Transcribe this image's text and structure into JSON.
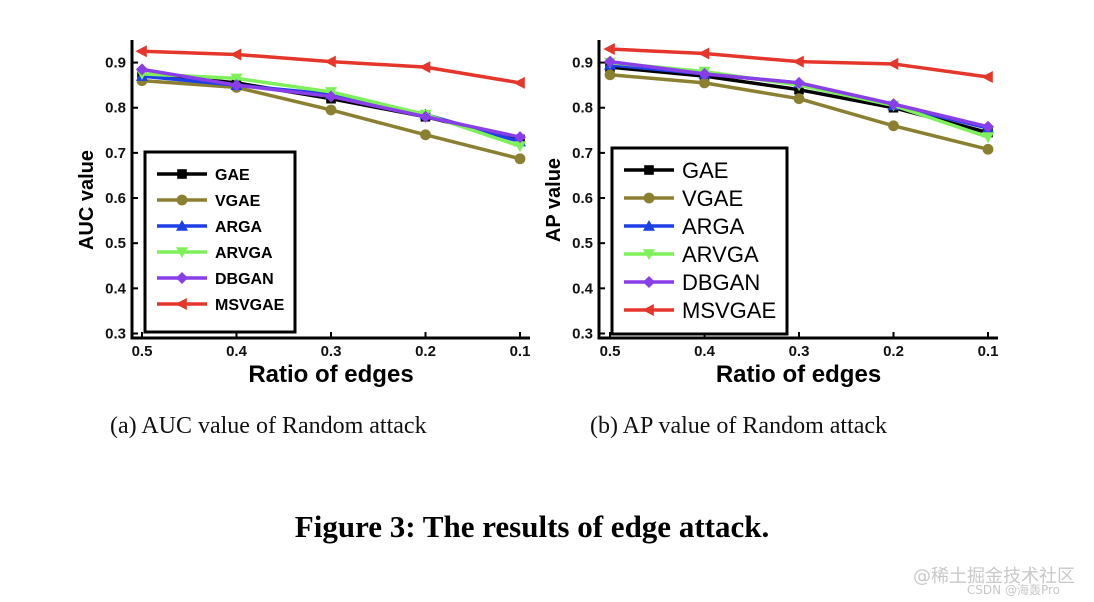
{
  "figure_caption": "Figure 3: The results of edge attack.",
  "watermark": {
    "line1": "@稀土掘金技术社区",
    "line2": "CSDN @海轰Pro"
  },
  "colors": {
    "GAE": "#000000",
    "VGAE": "#8b8032",
    "ARGA": "#1f3fe6",
    "ARVGA": "#7ef05a",
    "DBGAN": "#8a3ee8",
    "MSVGAE": "#e5362b"
  },
  "chart_data": [
    {
      "type": "line",
      "caption": "(a)  AUC value of Random attack",
      "xlabel": "Ratio of edges",
      "ylabel": "AUC value",
      "categories": [
        "0.5",
        "0.4",
        "0.3",
        "0.2",
        "0.1"
      ],
      "yticks": [
        "0.3",
        "0.4",
        "0.5",
        "0.6",
        "0.7",
        "0.8",
        "0.9"
      ],
      "ylim": [
        0.29,
        0.95
      ],
      "legend_position": "lower-left",
      "series": [
        {
          "name": "GAE",
          "marker": "square",
          "values": [
            0.875,
            0.855,
            0.82,
            0.78,
            0.73
          ]
        },
        {
          "name": "VGAE",
          "marker": "circle",
          "values": [
            0.86,
            0.845,
            0.795,
            0.74,
            0.687
          ]
        },
        {
          "name": "ARGA",
          "marker": "triangle-up",
          "values": [
            0.87,
            0.85,
            0.83,
            0.785,
            0.725
          ]
        },
        {
          "name": "ARVGA",
          "marker": "triangle-down",
          "values": [
            0.875,
            0.865,
            0.835,
            0.785,
            0.715
          ]
        },
        {
          "name": "DBGAN",
          "marker": "diamond",
          "values": [
            0.885,
            0.85,
            0.825,
            0.78,
            0.735
          ]
        },
        {
          "name": "MSVGAE",
          "marker": "triangle-left",
          "values": [
            0.925,
            0.918,
            0.902,
            0.89,
            0.855
          ]
        }
      ]
    },
    {
      "type": "line",
      "caption": "(b)  AP value of Random attack",
      "xlabel": "Ratio of edges",
      "ylabel": "AP value",
      "categories": [
        "0.5",
        "0.4",
        "0.3",
        "0.2",
        "0.1"
      ],
      "yticks": [
        "0.3",
        "0.4",
        "0.5",
        "0.6",
        "0.7",
        "0.8",
        "0.9"
      ],
      "ylim": [
        0.29,
        0.95
      ],
      "legend_position": "lower-left",
      "series": [
        {
          "name": "GAE",
          "marker": "square",
          "values": [
            0.89,
            0.87,
            0.84,
            0.8,
            0.745
          ]
        },
        {
          "name": "VGAE",
          "marker": "circle",
          "values": [
            0.873,
            0.855,
            0.82,
            0.76,
            0.708
          ]
        },
        {
          "name": "ARGA",
          "marker": "triangle-up",
          "values": [
            0.895,
            0.875,
            0.855,
            0.805,
            0.755
          ]
        },
        {
          "name": "ARVGA",
          "marker": "triangle-down",
          "values": [
            0.9,
            0.88,
            0.85,
            0.805,
            0.735
          ]
        },
        {
          "name": "DBGAN",
          "marker": "diamond",
          "values": [
            0.902,
            0.875,
            0.855,
            0.808,
            0.758
          ]
        },
        {
          "name": "MSVGAE",
          "marker": "triangle-left",
          "values": [
            0.93,
            0.92,
            0.902,
            0.897,
            0.868
          ]
        }
      ]
    }
  ]
}
